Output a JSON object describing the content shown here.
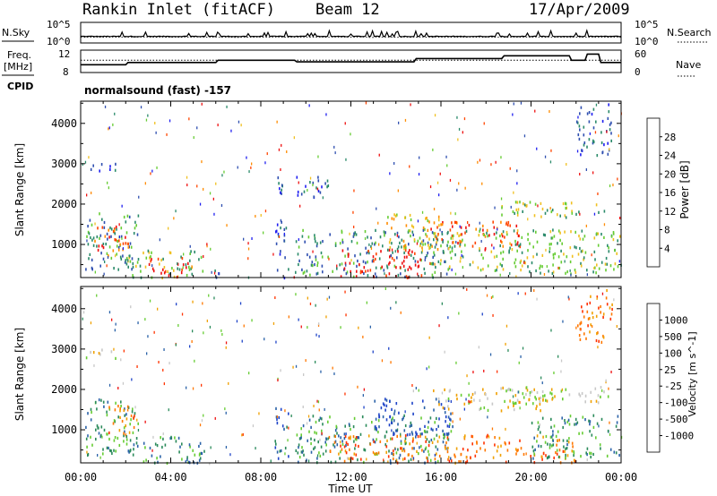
{
  "header": {
    "station": "Rankin Inlet (fitACF)",
    "beam": "Beam 12",
    "date": "17/Apr/2009"
  },
  "left_labels": {
    "nsky": "N.Sky",
    "freq_line1": "Freq.",
    "freq_line2": "[MHz]",
    "cpid": "CPID"
  },
  "right_labels": {
    "nsearch": "N.Search",
    "nave": "Nave"
  },
  "cpid_text": "normalsound (fast) -157",
  "chart_data": [
    {
      "type": "line",
      "title": "N.Sky / N.Search",
      "x_range": [
        "00:00",
        "24:00"
      ],
      "left_axis": {
        "label": "N.Sky",
        "ticks": [
          "10^5",
          "10^0"
        ],
        "scale": "log"
      },
      "right_axis": {
        "label": "N.Search",
        "ticks": [
          "10^5",
          "10^0"
        ],
        "scale": "log"
      },
      "series": [
        {
          "name": "N.Sky",
          "style": "solid",
          "baseline_log10": 1.6
        },
        {
          "name": "N.Search",
          "style": "dotted",
          "baseline_log10": 1.4
        }
      ]
    },
    {
      "type": "line",
      "title": "Freq / Nave",
      "x_range": [
        "00:00",
        "24:00"
      ],
      "left_axis": {
        "label": "Freq. [MHz]",
        "ticks": [
          "12",
          "8"
        ],
        "range": [
          8,
          12
        ]
      },
      "right_axis": {
        "label": "Nave",
        "ticks": [
          "60",
          "0"
        ],
        "range": [
          0,
          60
        ]
      },
      "series": [
        {
          "name": "Freq.",
          "style": "solid",
          "points": [
            [
              0,
              9.4
            ],
            [
              2.0,
              9.4
            ],
            [
              2.1,
              9.8
            ],
            [
              6.0,
              9.8
            ],
            [
              6.1,
              10.2
            ],
            [
              9.5,
              10.2
            ],
            [
              9.6,
              9.9
            ],
            [
              14.8,
              9.9
            ],
            [
              14.9,
              10.5
            ],
            [
              18.7,
              10.5
            ],
            [
              18.8,
              11.0
            ],
            [
              21.7,
              11.0
            ],
            [
              21.8,
              10.2
            ],
            [
              22.4,
              10.2
            ],
            [
              22.5,
              11.3
            ],
            [
              23.0,
              11.3
            ],
            [
              23.1,
              9.8
            ],
            [
              24,
              9.8
            ]
          ]
        },
        {
          "name": "Nave",
          "style": "dotted",
          "points": [
            [
              0,
              33
            ],
            [
              24,
              33
            ]
          ]
        }
      ]
    },
    {
      "type": "heatmap",
      "title": "Power",
      "xlabel": "",
      "ylabel": "Slant Range [km]",
      "x_ticks": [
        "00:00",
        "04:00",
        "08:00",
        "12:00",
        "16:00",
        "20:00",
        "00:00"
      ],
      "x_range_hours": [
        0,
        24
      ],
      "y_ticks": [
        1000,
        2000,
        3000,
        4000
      ],
      "y_range": [
        180,
        4550
      ],
      "colorbar": {
        "label": "Power [dB]",
        "ticks": [
          "4",
          "8",
          "12",
          "16",
          "20",
          "24",
          "28"
        ],
        "colors": [
          "#1f1ff0",
          "#2f4fb0",
          "#2a8a6a",
          "#66cc33",
          "#f0c020",
          "#ff8c00",
          "#ff4500",
          "#ee1010"
        ]
      },
      "regions": [
        {
          "x": [
            0.2,
            2.6
          ],
          "y": [
            400,
            1800
          ],
          "level": 2
        },
        {
          "x": [
            0.6,
            2.2
          ],
          "y": [
            700,
            1500
          ],
          "level": 6
        },
        {
          "x": [
            0.1,
            1.6
          ],
          "y": [
            2800,
            3050
          ],
          "level": 1
        },
        {
          "x": [
            2.0,
            5.5
          ],
          "y": [
            180,
            900
          ],
          "level": 3
        },
        {
          "x": [
            2.8,
            4.8
          ],
          "y": [
            180,
            700
          ],
          "level": 7
        },
        {
          "x": [
            5.8,
            6.3
          ],
          "y": [
            180,
            500
          ],
          "level": 1
        },
        {
          "x": [
            8.6,
            9.2
          ],
          "y": [
            180,
            1600
          ],
          "level": 1
        },
        {
          "x": [
            9.5,
            16.5
          ],
          "y": [
            180,
            1400
          ],
          "level": 2
        },
        {
          "x": [
            11.5,
            15.5
          ],
          "y": [
            180,
            900
          ],
          "level": 7
        },
        {
          "x": [
            13.5,
            16.0
          ],
          "y": [
            900,
            1800
          ],
          "level": 4
        },
        {
          "x": [
            15.5,
            19.5
          ],
          "y": [
            900,
            1600
          ],
          "level": 6
        },
        {
          "x": [
            15.5,
            24.0
          ],
          "y": [
            300,
            1400
          ],
          "level": 3
        },
        {
          "x": [
            18.5,
            23.5
          ],
          "y": [
            1700,
            2100
          ],
          "level": 3
        },
        {
          "x": [
            22.0,
            23.6
          ],
          "y": [
            3200,
            4500
          ],
          "level": 1
        },
        {
          "x": [
            8.5,
            11.0
          ],
          "y": [
            2200,
            2700
          ],
          "level": 1
        }
      ]
    },
    {
      "type": "heatmap",
      "title": "Velocity",
      "xlabel": "Time UT",
      "ylabel": "Slant Range [km]",
      "x_ticks": [
        "00:00",
        "04:00",
        "08:00",
        "12:00",
        "16:00",
        "20:00",
        "00:00"
      ],
      "x_range_hours": [
        0,
        24
      ],
      "y_ticks": [
        1000,
        2000,
        3000,
        4000
      ],
      "y_range": [
        180,
        4550
      ],
      "colorbar": {
        "label": "Velocity [m s^-1]",
        "ticks": [
          "1000",
          "500",
          "100",
          "25",
          "-25",
          "-100",
          "-500",
          "-1000"
        ],
        "colors": [
          "#1f44c8",
          "#2a62a8",
          "#2a8a5a",
          "#66cc33",
          "#c8c8c8",
          "#f0a000",
          "#ff7700",
          "#ff3300",
          "#ee1010"
        ]
      },
      "regions": [
        {
          "x": [
            0.2,
            2.6
          ],
          "y": [
            400,
            1800
          ],
          "level": 2
        },
        {
          "x": [
            1.2,
            2.4
          ],
          "y": [
            900,
            1700
          ],
          "level": 6
        },
        {
          "x": [
            0.1,
            1.6
          ],
          "y": [
            2800,
            3050
          ],
          "level": 4
        },
        {
          "x": [
            2.0,
            5.5
          ],
          "y": [
            180,
            900
          ],
          "level": 2
        },
        {
          "x": [
            8.6,
            9.2
          ],
          "y": [
            180,
            1600
          ],
          "level": 1
        },
        {
          "x": [
            9.5,
            16.5
          ],
          "y": [
            180,
            1400
          ],
          "level": 2
        },
        {
          "x": [
            11.0,
            22.0
          ],
          "y": [
            180,
            900
          ],
          "level": 6
        },
        {
          "x": [
            13.0,
            16.5
          ],
          "y": [
            900,
            1800
          ],
          "level": 0
        },
        {
          "x": [
            15.5,
            21.0
          ],
          "y": [
            1500,
            2050
          ],
          "level": 4
        },
        {
          "x": [
            18.5,
            23.5
          ],
          "y": [
            1700,
            2100
          ],
          "level": 4
        },
        {
          "x": [
            22.0,
            23.6
          ],
          "y": [
            3200,
            4500
          ],
          "level": 6
        },
        {
          "x": [
            20.0,
            24.0
          ],
          "y": [
            300,
            1400
          ],
          "level": 2
        }
      ]
    }
  ]
}
